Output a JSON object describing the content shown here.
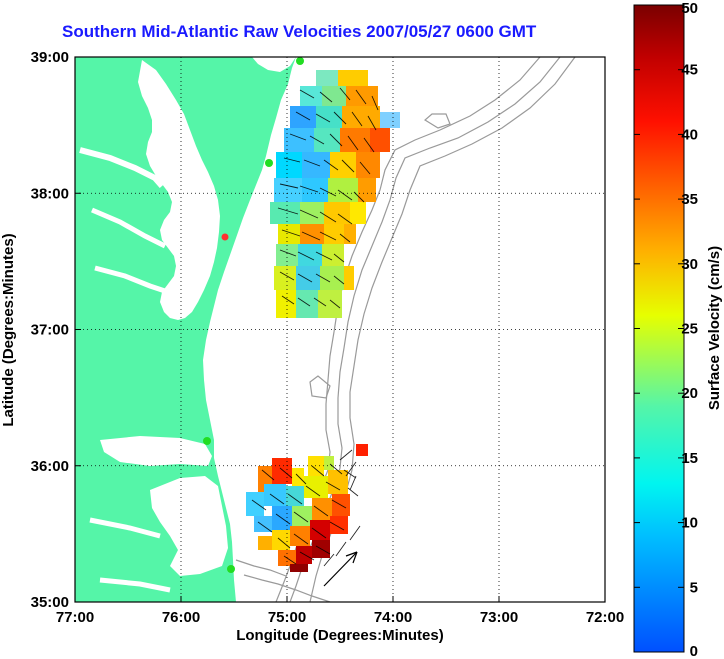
{
  "title": "Southern Mid-Atlantic Raw Velocities 2007/05/27 0600 GMT",
  "map": {
    "xlabel": "Longitude (Degrees:Minutes)",
    "ylabel": "Latitude (Degrees:Minutes)",
    "lon_range": [
      -77,
      -72
    ],
    "lat_range": [
      35,
      39
    ],
    "x_ticks": [
      {
        "value": -77,
        "label": "77:00"
      },
      {
        "value": -76,
        "label": "76:00"
      },
      {
        "value": -75,
        "label": "75:00"
      },
      {
        "value": -74,
        "label": "74:00"
      },
      {
        "value": -73,
        "label": "73:00"
      },
      {
        "value": -72,
        "label": "72:00"
      }
    ],
    "y_ticks": [
      {
        "value": 39,
        "label": "39:00"
      },
      {
        "value": 38,
        "label": "38:00"
      },
      {
        "value": 37,
        "label": "37:00"
      },
      {
        "value": 36,
        "label": "36:00"
      },
      {
        "value": 35,
        "label": "35:00"
      }
    ],
    "grid": "dotted",
    "land_color": "#55f5a8",
    "contour_color": "#9a9a9a",
    "station_color": "#22dd22"
  },
  "colorbar": {
    "label": "Surface Velocity (cm/s)",
    "min": 0,
    "max": 50,
    "ticks": [
      {
        "value": 0,
        "label": "0"
      },
      {
        "value": 5,
        "label": "5"
      },
      {
        "value": 10,
        "label": "10"
      },
      {
        "value": 15,
        "label": "15"
      },
      {
        "value": 20,
        "label": "20"
      },
      {
        "value": 25,
        "label": "25"
      },
      {
        "value": 30,
        "label": "30"
      },
      {
        "value": 35,
        "label": "35"
      },
      {
        "value": 40,
        "label": "40"
      },
      {
        "value": 45,
        "label": "45"
      },
      {
        "value": 50,
        "label": "50"
      }
    ],
    "stops": [
      "#0055ff",
      "#00e5ff",
      "#55ff88",
      "#ffff00",
      "#ff8800",
      "#ff0000",
      "#7a0000"
    ]
  }
}
